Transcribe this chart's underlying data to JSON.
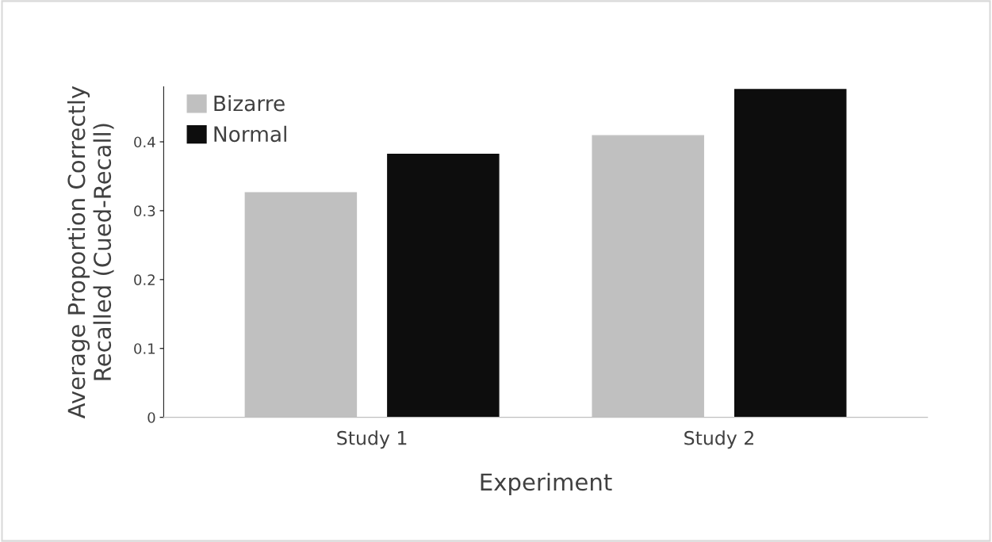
{
  "chart_data": {
    "type": "bar",
    "xlabel": "Experiment",
    "ylabel": "Average Proportion Correctly\nRecalled (Cued-Recall)",
    "categories": [
      "Study 1",
      "Study 2"
    ],
    "series": [
      {
        "name": "Bizarre",
        "color": "#c0c0c0",
        "values": [
          0.326,
          0.409
        ]
      },
      {
        "name": "Normal",
        "color": "#0d0d0d",
        "values": [
          0.382,
          0.476
        ]
      }
    ],
    "ylim": [
      0,
      0.48
    ],
    "yticks": [
      0,
      0.1,
      0.2,
      0.3,
      0.4
    ],
    "grid": false,
    "legend": "top left"
  }
}
